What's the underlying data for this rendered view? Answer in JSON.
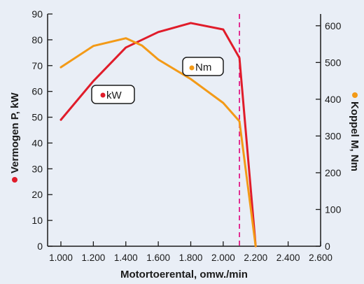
{
  "chart_data": {
    "type": "line",
    "xlabel": "Motortoerental, omw./min",
    "ylabel_left": "Vermogen P, kW",
    "ylabel_right": "Koppel M, Nm",
    "x_ticks": [
      "1.000",
      "1.200",
      "1.400",
      "1.600",
      "1.800",
      "2.000",
      "2.200",
      "2.400",
      "2.600"
    ],
    "x_range": [
      1000,
      2600
    ],
    "y_left": {
      "ticks": [
        "0",
        "10",
        "20",
        "30",
        "40",
        "50",
        "60",
        "70",
        "80",
        "90"
      ],
      "range": [
        0,
        90
      ]
    },
    "y_right": {
      "ticks": [
        "0",
        "100",
        "200",
        "300",
        "400",
        "500",
        "600"
      ],
      "range": [
        0,
        632
      ]
    },
    "grid": false,
    "reference_line": {
      "x": 2100,
      "color": "#e0007a"
    },
    "series": [
      {
        "name": "kW",
        "axis": "left",
        "color": "#e01c2a",
        "x": [
          1000,
          1200,
          1400,
          1600,
          1800,
          2000,
          2100,
          2200
        ],
        "y": [
          49,
          64,
          77,
          83,
          86.5,
          84,
          73,
          0
        ]
      },
      {
        "name": "Nm",
        "axis": "right",
        "color": "#f39a17",
        "x": [
          1000,
          1200,
          1400,
          1500,
          1600,
          1800,
          2000,
          2100,
          2200
        ],
        "y": [
          487,
          545,
          566,
          546,
          508,
          455,
          390,
          340,
          0
        ]
      }
    ]
  }
}
